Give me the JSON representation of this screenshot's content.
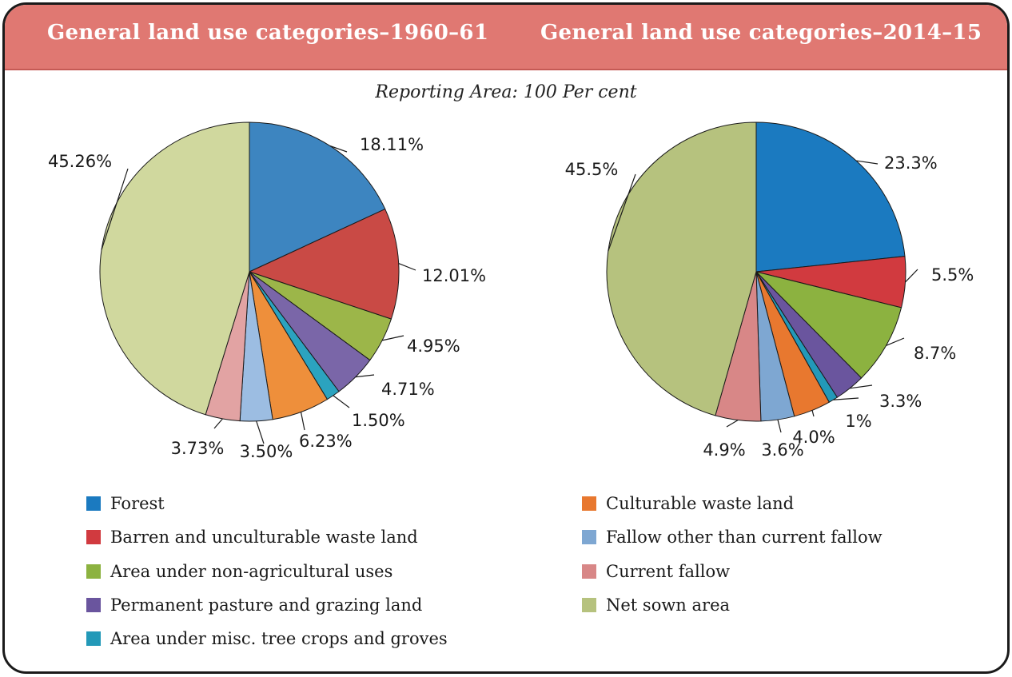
{
  "chart_data": [
    {
      "type": "pie",
      "title": "General land use categories–1960–61",
      "subtitle": "Reporting Area: 100 Per cent",
      "slices": [
        {
          "label": "Forest",
          "value": 18.11,
          "value_label": "18.11%",
          "color": "#3d85c0"
        },
        {
          "label": "Barren and unculturable waste land",
          "value": 12.01,
          "value_label": "12.01%",
          "color": "#c94a45"
        },
        {
          "label": "Area under non-agricultural uses",
          "value": 4.95,
          "value_label": "4.95%",
          "color": "#9cb649"
        },
        {
          "label": "Permanent pasture and grazing land",
          "value": 4.71,
          "value_label": "4.71%",
          "color": "#7a66a8"
        },
        {
          "label": "Area under misc. tree crops and groves",
          "value": 1.5,
          "value_label": "1.50%",
          "color": "#2ba3bf"
        },
        {
          "label": "Culturable waste land",
          "value": 6.23,
          "value_label": "6.23%",
          "color": "#ee8f3b"
        },
        {
          "label": "Fallow other than current fallow",
          "value": 3.5,
          "value_label": "3.50%",
          "color": "#9cbde2"
        },
        {
          "label": "Current fallow",
          "value": 3.73,
          "value_label": "3.73%",
          "color": "#e2a3a3"
        },
        {
          "label": "Net sown area",
          "value": 45.26,
          "value_label": "45.26%",
          "color": "#d0d89e"
        }
      ]
    },
    {
      "type": "pie",
      "title": "General land use categories–2014–15",
      "subtitle": "Reporting Area: 100 Per cent",
      "slices": [
        {
          "label": "Forest",
          "value": 23.3,
          "value_label": "23.3%",
          "color": "#1b7ac0"
        },
        {
          "label": "Barren and unculturable waste land",
          "value": 5.5,
          "value_label": "5.5%",
          "color": "#d13a3f"
        },
        {
          "label": "Area under non-agricultural uses",
          "value": 8.7,
          "value_label": "8.7%",
          "color": "#8cb240"
        },
        {
          "label": "Permanent pasture and grazing land",
          "value": 3.3,
          "value_label": "3.3%",
          "color": "#6a559e"
        },
        {
          "label": "Area under misc. tree crops and groves",
          "value": 1,
          "value_label": "1%",
          "color": "#2399b8"
        },
        {
          "label": "Culturable waste land",
          "value": 4.0,
          "value_label": "4.0%",
          "color": "#e8782f"
        },
        {
          "label": "Fallow other than current fallow",
          "value": 3.6,
          "value_label": "3.6%",
          "color": "#7ea7d2"
        },
        {
          "label": "Current fallow",
          "value": 4.9,
          "value_label": "4.9%",
          "color": "#d88787"
        },
        {
          "label": "Net sown area",
          "value": 45.5,
          "value_label": "45.5%",
          "color": "#b6c27e"
        }
      ]
    }
  ],
  "header": {
    "left_title": "General land use categories–1960–61",
    "right_title": "General land use categories–2014–15",
    "subtitle": "Reporting Area: 100 Per cent"
  },
  "legend": [
    {
      "label": "Forest",
      "color": "#1b7ac0"
    },
    {
      "label": "Barren and unculturable waste land",
      "color": "#d13a3f"
    },
    {
      "label": "Area under non-agricultural uses",
      "color": "#8cb240"
    },
    {
      "label": "Permanent pasture and grazing land",
      "color": "#6a559e"
    },
    {
      "label": "Area under misc. tree crops and groves",
      "color": "#2399b8"
    },
    {
      "label": "Culturable waste land",
      "color": "#e8782f"
    },
    {
      "label": "Fallow other than current fallow",
      "color": "#7ea7d2"
    },
    {
      "label": "Current fallow",
      "color": "#d88787"
    },
    {
      "label": "Net sown area",
      "color": "#b6c27e"
    }
  ],
  "colors": {
    "header": "#e07872",
    "border": "#1a1a1a"
  }
}
